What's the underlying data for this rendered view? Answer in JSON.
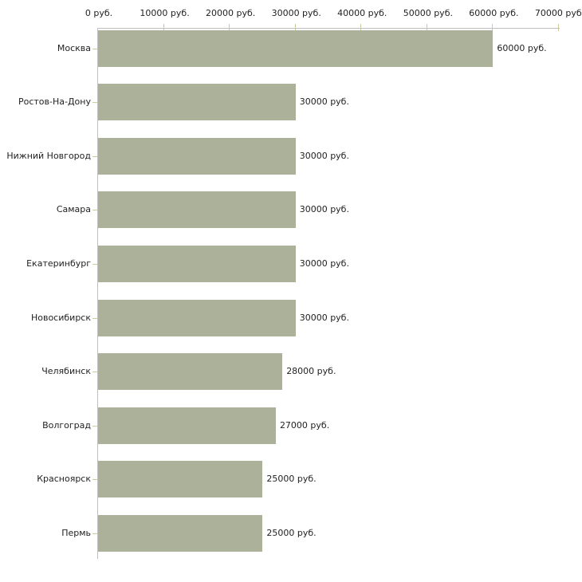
{
  "chart": {
    "background_color": "#ffffff",
    "bar_color": "#acb19a",
    "axis_line_color": "#bfbfbf",
    "tick_color": "#cccc99",
    "text_color": "#222222"
  },
  "chart_data": {
    "type": "bar",
    "orientation": "horizontal",
    "title": "",
    "xlabel": "",
    "ylabel": "",
    "categories": [
      "Москва",
      "Ростов-На-Дону",
      "Нижний Новгород",
      "Самара",
      "Екатеринбург",
      "Новосибирск",
      "Челябинск",
      "Волгоград",
      "Красноярск",
      "Пермь"
    ],
    "values": [
      60000,
      30000,
      30000,
      30000,
      30000,
      30000,
      28000,
      27000,
      25000,
      25000
    ],
    "value_labels": [
      "60000 руб.",
      "30000 руб.",
      "30000 руб.",
      "30000 руб.",
      "30000 руб.",
      "30000 руб.",
      "28000 руб.",
      "27000 руб.",
      "25000 руб.",
      "25000 руб."
    ],
    "x_ticks": [
      0,
      10000,
      20000,
      30000,
      40000,
      50000,
      60000,
      70000
    ],
    "x_tick_labels": [
      "0 руб.",
      "10000 руб.",
      "20000 руб.",
      "30000 руб.",
      "40000 руб.",
      "50000 руб.",
      "60000 руб.",
      "70000 руб."
    ],
    "xlim": [
      0,
      70000
    ],
    "grid": false,
    "legend": false,
    "value_suffix": " руб."
  }
}
